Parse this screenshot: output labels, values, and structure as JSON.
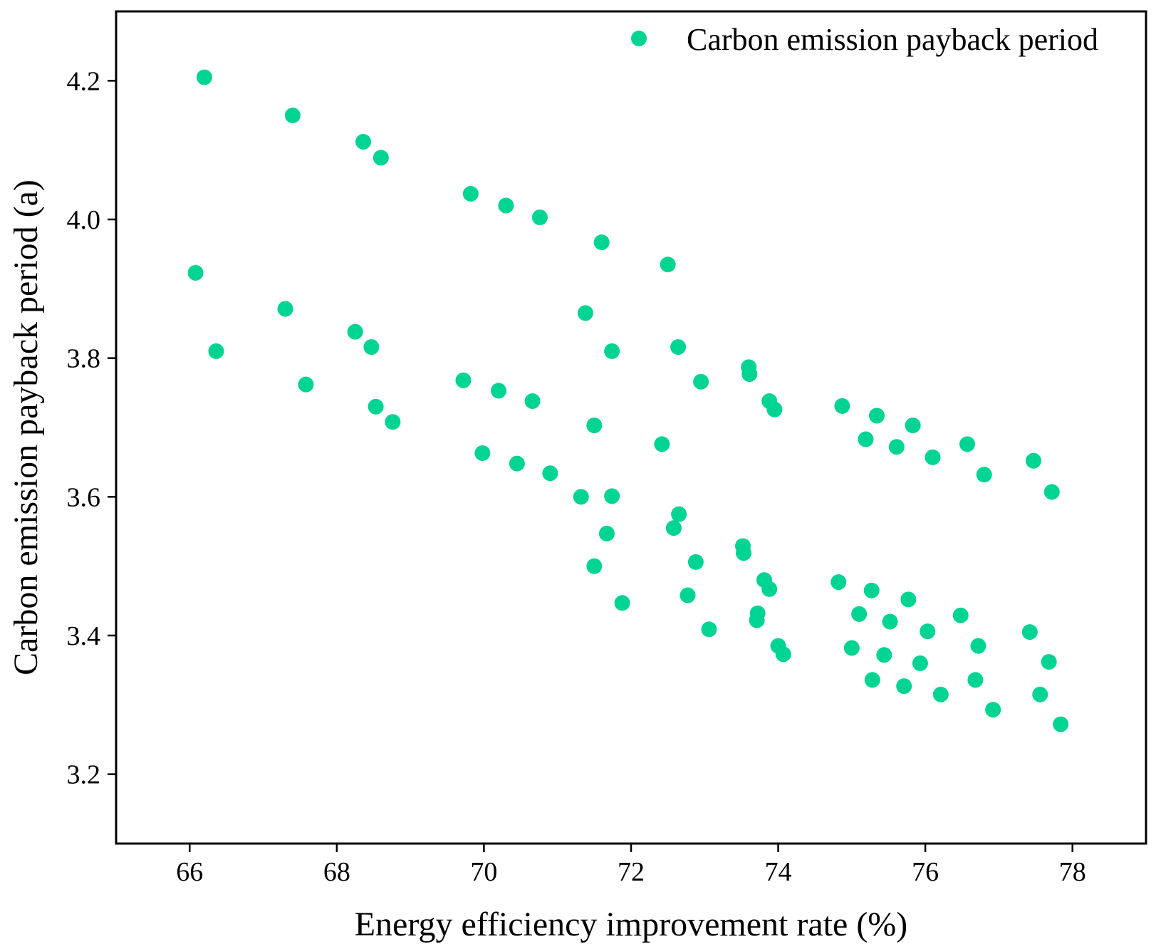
{
  "chart_data": {
    "type": "scatter",
    "title": "",
    "xlabel": "Energy efficiency improvement rate (%)",
    "ylabel": "Carbon emission payback period (a)",
    "xlim": [
      65,
      79
    ],
    "ylim": [
      3.1,
      4.3
    ],
    "xticks": [
      66,
      68,
      70,
      72,
      74,
      76,
      78
    ],
    "yticks": [
      3.2,
      3.4,
      3.6,
      3.8,
      4.0,
      4.2
    ],
    "xtick_labels": [
      "66",
      "68",
      "70",
      "72",
      "74",
      "76",
      "78"
    ],
    "ytick_labels": [
      "3.2",
      "3.4",
      "3.6",
      "3.8",
      "4.0",
      "4.2"
    ],
    "grid": false,
    "legend_position": "top-right",
    "series": [
      {
        "name": "Carbon emission payback period",
        "color": "#00d492",
        "points": [
          [
            66.2,
            4.205
          ],
          [
            67.4,
            4.15
          ],
          [
            68.36,
            4.112
          ],
          [
            68.6,
            4.089
          ],
          [
            69.82,
            4.037
          ],
          [
            70.3,
            4.02
          ],
          [
            70.76,
            4.003
          ],
          [
            71.6,
            3.967
          ],
          [
            72.5,
            3.935
          ],
          [
            66.08,
            3.923
          ],
          [
            67.3,
            3.871
          ],
          [
            68.25,
            3.838
          ],
          [
            68.47,
            3.816
          ],
          [
            66.36,
            3.81
          ],
          [
            67.58,
            3.762
          ],
          [
            68.53,
            3.73
          ],
          [
            68.76,
            3.708
          ],
          [
            71.38,
            3.865
          ],
          [
            72.64,
            3.816
          ],
          [
            71.74,
            3.81
          ],
          [
            73.6,
            3.787
          ],
          [
            73.61,
            3.777
          ],
          [
            72.95,
            3.766
          ],
          [
            73.88,
            3.738
          ],
          [
            73.95,
            3.726
          ],
          [
            69.72,
            3.768
          ],
          [
            70.2,
            3.753
          ],
          [
            70.66,
            3.738
          ],
          [
            71.5,
            3.703
          ],
          [
            72.42,
            3.676
          ],
          [
            69.98,
            3.663
          ],
          [
            70.45,
            3.648
          ],
          [
            70.9,
            3.634
          ],
          [
            71.32,
            3.6
          ],
          [
            71.74,
            3.601
          ],
          [
            72.65,
            3.575
          ],
          [
            72.58,
            3.555
          ],
          [
            71.67,
            3.547
          ],
          [
            73.52,
            3.529
          ],
          [
            73.53,
            3.519
          ],
          [
            72.88,
            3.506
          ],
          [
            71.5,
            3.5
          ],
          [
            73.81,
            3.48
          ],
          [
            73.88,
            3.467
          ],
          [
            72.77,
            3.458
          ],
          [
            71.88,
            3.447
          ],
          [
            73.72,
            3.432
          ],
          [
            73.71,
            3.422
          ],
          [
            73.06,
            3.409
          ],
          [
            74.0,
            3.385
          ],
          [
            74.07,
            3.373
          ],
          [
            74.87,
            3.731
          ],
          [
            75.34,
            3.717
          ],
          [
            75.83,
            3.703
          ],
          [
            75.19,
            3.683
          ],
          [
            76.57,
            3.676
          ],
          [
            75.61,
            3.672
          ],
          [
            76.1,
            3.657
          ],
          [
            76.8,
            3.632
          ],
          [
            77.47,
            3.652
          ],
          [
            77.72,
            3.607
          ],
          [
            74.82,
            3.477
          ],
          [
            75.27,
            3.465
          ],
          [
            75.77,
            3.452
          ],
          [
            75.1,
            3.431
          ],
          [
            76.48,
            3.429
          ],
          [
            75.52,
            3.42
          ],
          [
            76.03,
            3.406
          ],
          [
            77.42,
            3.405
          ],
          [
            75.0,
            3.382
          ],
          [
            76.72,
            3.385
          ],
          [
            75.44,
            3.372
          ],
          [
            77.68,
            3.362
          ],
          [
            75.93,
            3.36
          ],
          [
            75.28,
            3.336
          ],
          [
            76.68,
            3.336
          ],
          [
            75.71,
            3.327
          ],
          [
            76.21,
            3.315
          ],
          [
            77.56,
            3.315
          ],
          [
            76.92,
            3.293
          ],
          [
            77.84,
            3.272
          ]
        ]
      }
    ]
  }
}
